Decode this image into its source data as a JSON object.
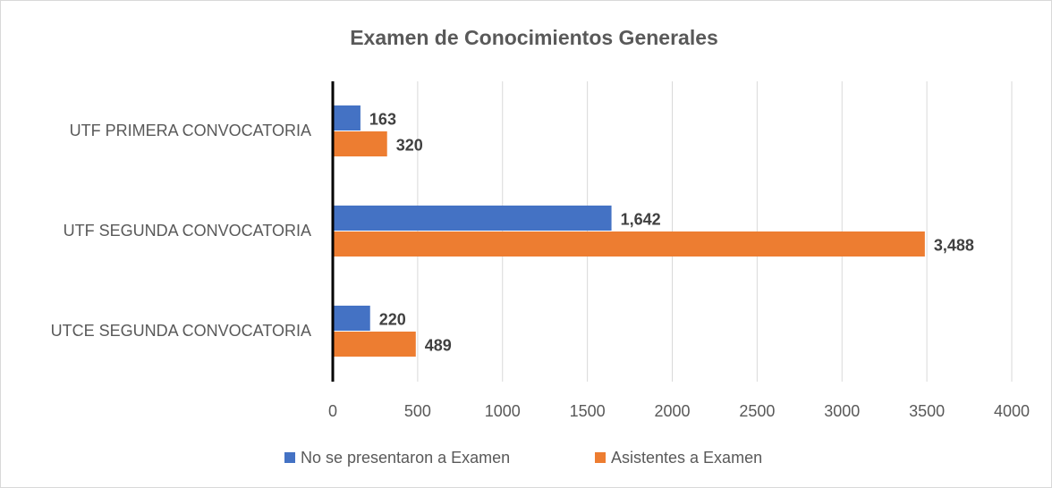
{
  "chart_data": {
    "type": "hbar",
    "title": "Examen de Conocimientos Generales",
    "categories": [
      "UTF PRIMERA CONVOCATORIA",
      "UTF SEGUNDA CONVOCATORIA",
      "UTCE SEGUNDA CONVOCATORIA"
    ],
    "series": [
      {
        "name": "No se presentaron a Examen",
        "color": "#4472c4",
        "values": [
          163,
          1642,
          220
        ],
        "value_labels": [
          "163",
          "1,642",
          "220"
        ]
      },
      {
        "name": "Asistentes a Examen",
        "color": "#ed7d31",
        "values": [
          320,
          3488,
          489
        ],
        "value_labels": [
          "320",
          "3,488",
          "489"
        ]
      }
    ],
    "xlim": [
      0,
      4000
    ],
    "xticks": [
      0,
      500,
      1000,
      1500,
      2000,
      2500,
      3000,
      3500,
      4000
    ],
    "grid": true,
    "legend": "bottom"
  }
}
